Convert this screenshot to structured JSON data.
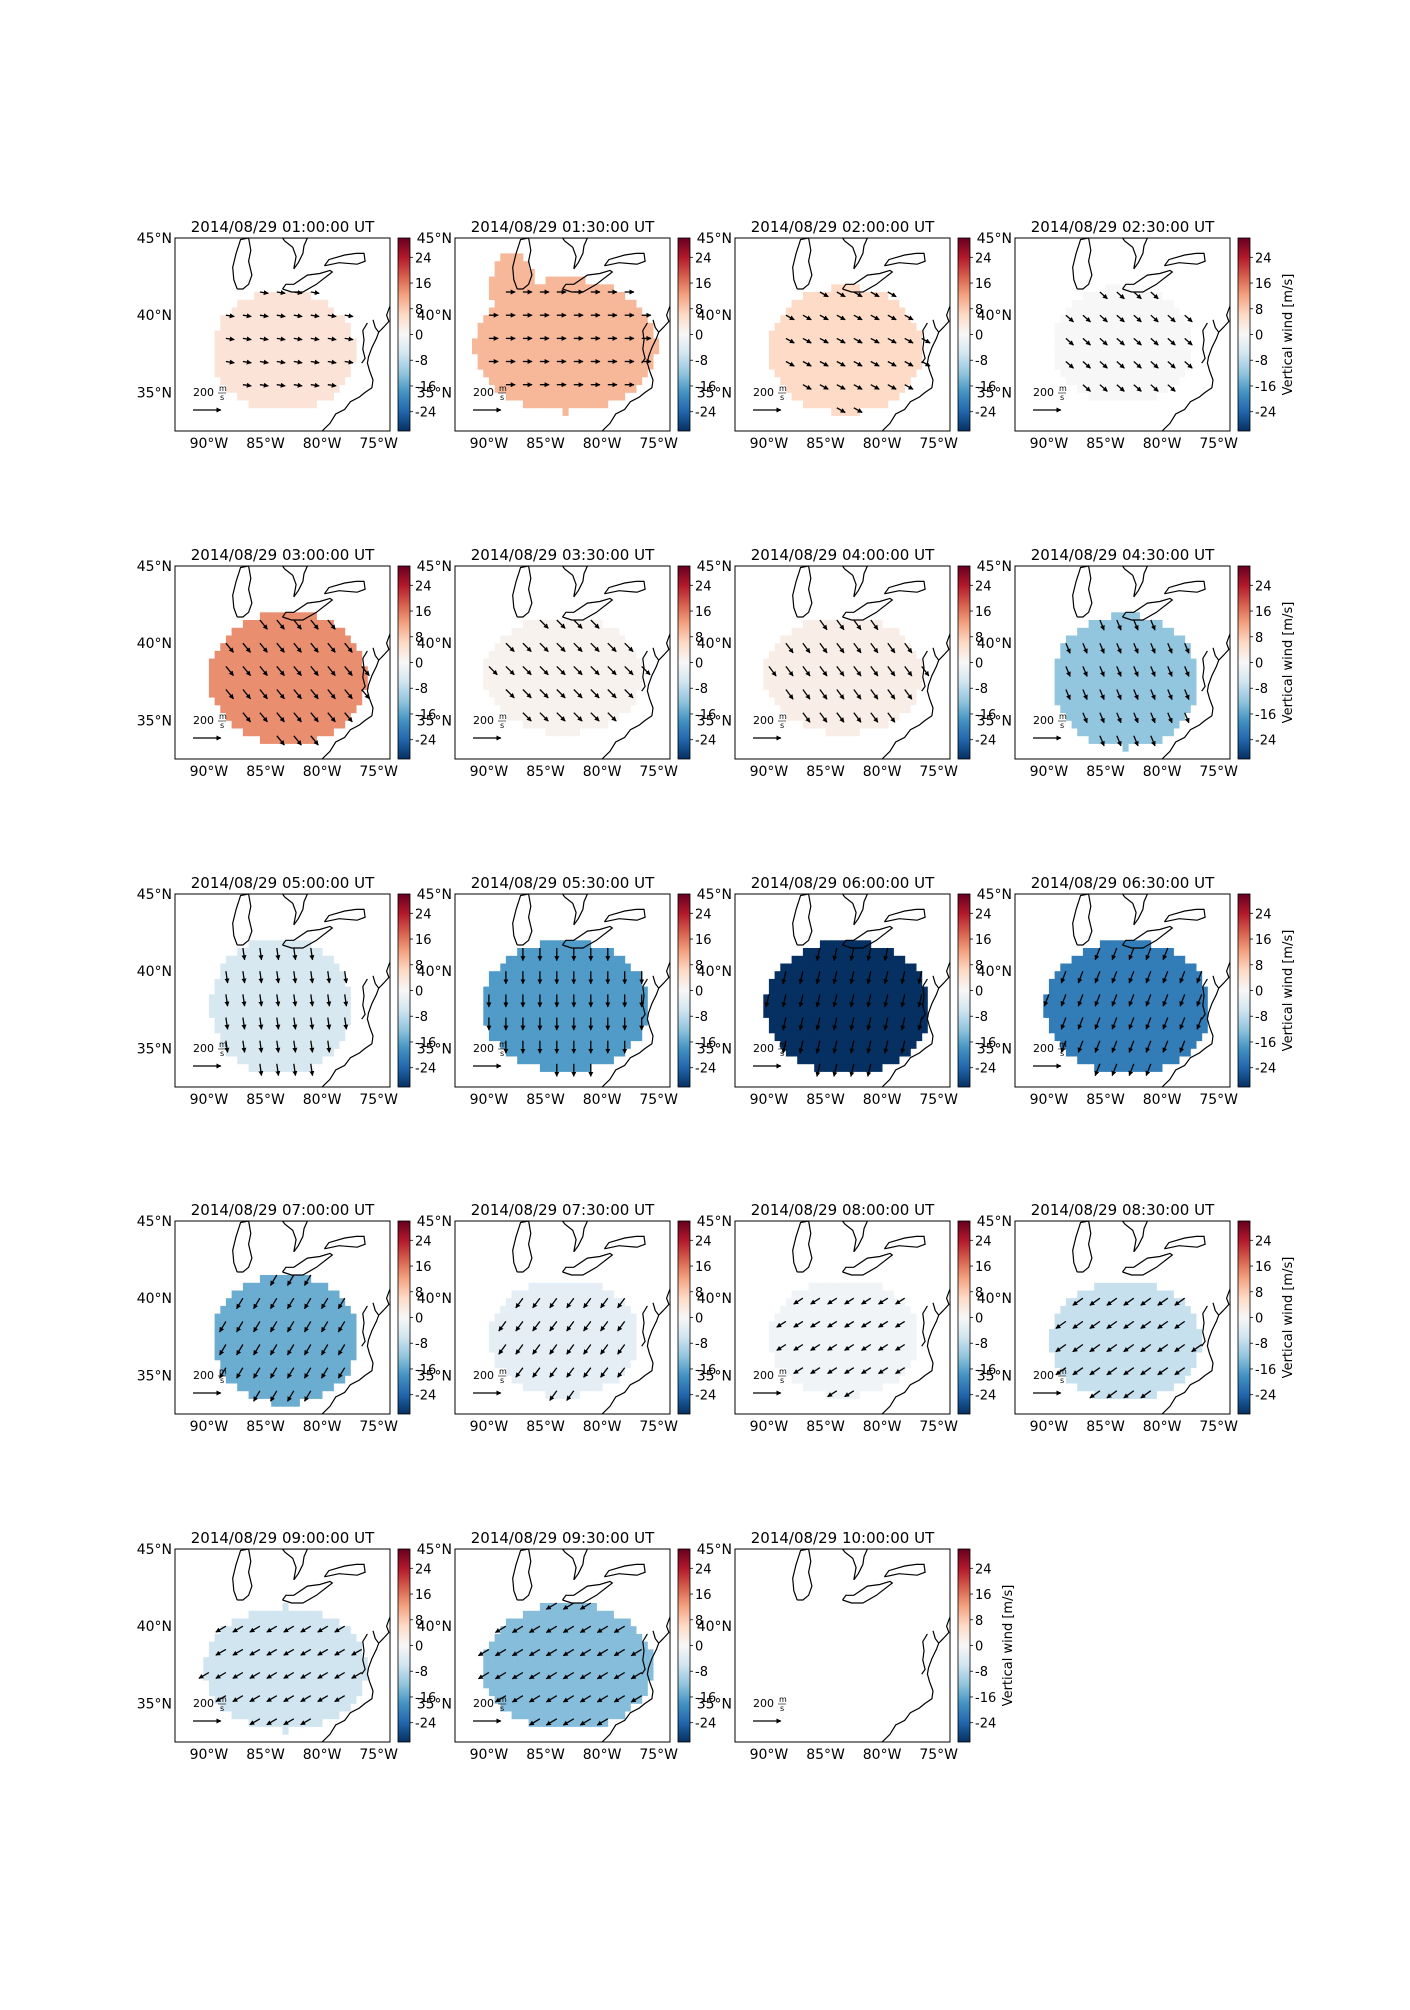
{
  "figure": {
    "colorbar_label": "Vertical wind [m/s]",
    "scale_label_value": "200",
    "scale_label_unit_num": "m",
    "scale_label_unit_den": "s",
    "colormap": {
      "name": "RdBu_r",
      "stops": [
        "#053061",
        "#2166ac",
        "#4393c3",
        "#92c5de",
        "#d1e5f0",
        "#f7f7f7",
        "#fddbc7",
        "#f4a582",
        "#d6604d",
        "#b2182b",
        "#67001f"
      ]
    }
  },
  "chart_data": {
    "type": "heatmap",
    "map_extent": {
      "lon": [
        -93,
        -74
      ],
      "lat": [
        32.5,
        45
      ]
    },
    "x_ticks": [
      "90°W",
      "85°W",
      "80°W",
      "75°W"
    ],
    "y_ticks": [
      "45°N",
      "40°N",
      "35°N"
    ],
    "colorbar_ticks": [
      "24",
      "16",
      "8",
      "0",
      "-8",
      "-16",
      "-24"
    ],
    "colorbar_range": [
      -30,
      30
    ],
    "quiver_reference": 200,
    "panels": [
      {
        "title": "2014/08/29 01:00:00 UT",
        "vertical_wind": 4,
        "wind_u": 100,
        "wind_v": -15,
        "footprint": "A"
      },
      {
        "title": "2014/08/29 01:30:00 UT",
        "vertical_wind": 10,
        "wind_u": 110,
        "wind_v": 0,
        "footprint": "B"
      },
      {
        "title": "2014/08/29 02:00:00 UT",
        "vertical_wind": 6,
        "wind_u": 100,
        "wind_v": -55,
        "footprint": "C"
      },
      {
        "title": "2014/08/29 02:30:00 UT",
        "vertical_wind": 0,
        "wind_u": 90,
        "wind_v": -80,
        "footprint": "D"
      },
      {
        "title": "2014/08/29 03:00:00 UT",
        "vertical_wind": 14,
        "wind_u": 90,
        "wind_v": -110,
        "footprint": "E"
      },
      {
        "title": "2014/08/29 03:30:00 UT",
        "vertical_wind": 1,
        "wind_u": 100,
        "wind_v": -100,
        "footprint": "F"
      },
      {
        "title": "2014/08/29 04:00:00 UT",
        "vertical_wind": 2,
        "wind_u": 85,
        "wind_v": -115,
        "footprint": "F"
      },
      {
        "title": "2014/08/29 04:30:00 UT",
        "vertical_wind": -12,
        "wind_u": 50,
        "wind_v": -120,
        "footprint": "G"
      },
      {
        "title": "2014/08/29 05:00:00 UT",
        "vertical_wind": -5,
        "wind_u": 20,
        "wind_v": -140,
        "footprint": "H"
      },
      {
        "title": "2014/08/29 05:30:00 UT",
        "vertical_wind": -17,
        "wind_u": 0,
        "wind_v": -150,
        "footprint": "I"
      },
      {
        "title": "2014/08/29 06:00:00 UT",
        "vertical_wind": -30,
        "wind_u": -35,
        "wind_v": -150,
        "footprint": "J"
      },
      {
        "title": "2014/08/29 06:30:00 UT",
        "vertical_wind": -21,
        "wind_u": -55,
        "wind_v": -140,
        "footprint": "J"
      },
      {
        "title": "2014/08/29 07:00:00 UT",
        "vertical_wind": -15,
        "wind_u": -75,
        "wind_v": -125,
        "footprint": "K"
      },
      {
        "title": "2014/08/29 07:30:00 UT",
        "vertical_wind": -3,
        "wind_u": -85,
        "wind_v": -115,
        "footprint": "L"
      },
      {
        "title": "2014/08/29 08:00:00 UT",
        "vertical_wind": -1,
        "wind_u": -110,
        "wind_v": -70,
        "footprint": "L"
      },
      {
        "title": "2014/08/29 08:30:00 UT",
        "vertical_wind": -7,
        "wind_u": -120,
        "wind_v": -85,
        "footprint": "M"
      },
      {
        "title": "2014/08/29 09:00:00 UT",
        "vertical_wind": -6,
        "wind_u": -120,
        "wind_v": -70,
        "footprint": "N"
      },
      {
        "title": "2014/08/29 09:30:00 UT",
        "vertical_wind": -13,
        "wind_u": -125,
        "wind_v": -75,
        "footprint": "O"
      },
      {
        "title": "2014/08/29 10:00:00 UT",
        "vertical_wind": null,
        "wind_u": null,
        "wind_v": null,
        "footprint": null
      }
    ]
  }
}
